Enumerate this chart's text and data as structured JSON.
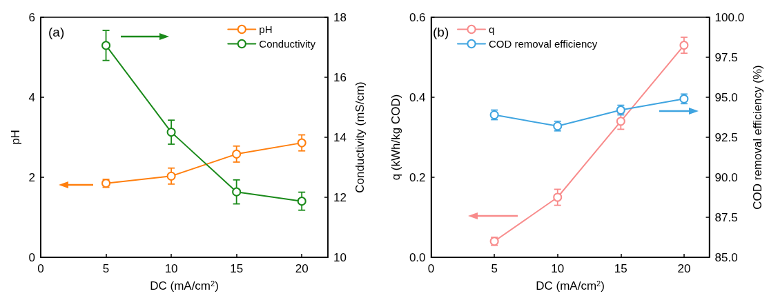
{
  "chart_data": [
    {
      "type": "line",
      "annotations": [
        "(a)"
      ],
      "xlabel": "DC (mA/cm$^{2}$)",
      "ylabel": "pH",
      "y2label": "Conductivity (mS/cm)",
      "x": [
        5,
        10,
        15,
        20
      ],
      "series": [
        {
          "name": "pH",
          "color": "#ff7f0e",
          "values": [
            1.85,
            2.03,
            2.58,
            2.86
          ],
          "errors": [
            0.1,
            0.2,
            0.2,
            0.2
          ]
        },
        {
          "name": "Conductivity",
          "color": "#1a8a1a",
          "axis": "y2",
          "values": [
            17.06,
            14.17,
            12.18,
            11.87
          ],
          "errors": [
            0.5,
            0.4,
            0.4,
            0.3
          ]
        }
      ],
      "xlim": [
        0,
        22
      ],
      "xticks": [
        0,
        5,
        10,
        15,
        20
      ],
      "ylim": [
        0,
        6
      ],
      "yticks": [
        0,
        2,
        4,
        6
      ],
      "y2lim": [
        10,
        18
      ],
      "y2ticks": [
        10,
        12,
        14,
        16,
        18
      ],
      "legend": "top right",
      "marker": "circle",
      "line_style": "solid",
      "grid": false
    },
    {
      "type": "line",
      "annotations": [
        "(b)"
      ],
      "xlabel": "DC (mA/cm$^{2}$)",
      "ylabel": "q (kWh/kg COD)",
      "y2label": "COD removal efficiency (%)",
      "x": [
        5,
        10,
        15,
        20
      ],
      "series": [
        {
          "name": "q",
          "color": "#f88b8b",
          "values": [
            0.04,
            0.15,
            0.34,
            0.53
          ],
          "errors": [
            0.01,
            0.02,
            0.02,
            0.02
          ]
        },
        {
          "name": "COD removal efficiency",
          "color": "#3fa4e0",
          "axis": "y2",
          "values": [
            93.9,
            93.2,
            94.2,
            94.9
          ],
          "errors": [
            0.3,
            0.3,
            0.3,
            0.3
          ]
        }
      ],
      "xlim": [
        0,
        22
      ],
      "xticks": [
        0,
        5,
        10,
        15,
        20
      ],
      "ylim": [
        0,
        0.6
      ],
      "yticks": [
        {
          "value": 0,
          "label": "0.0"
        },
        {
          "value": 0.2,
          "label": "0.2"
        },
        {
          "value": 0.4,
          "label": "0.4"
        },
        {
          "value": 0.6,
          "label": "0.6"
        }
      ],
      "y2lim": [
        85,
        100
      ],
      "y2ticks": [
        {
          "value": 85,
          "label": "85.0"
        },
        {
          "value": 87.5,
          "label": "87.5"
        },
        {
          "value": 90,
          "label": "90.0"
        },
        {
          "value": 92.5,
          "label": "92.5"
        },
        {
          "value": 95,
          "label": "95.0"
        },
        {
          "value": 97.5,
          "label": "97.5"
        },
        {
          "value": 100,
          "label": "100.0"
        }
      ],
      "legend": "top",
      "marker": "circle",
      "line_style": "solid",
      "grid": false
    }
  ]
}
